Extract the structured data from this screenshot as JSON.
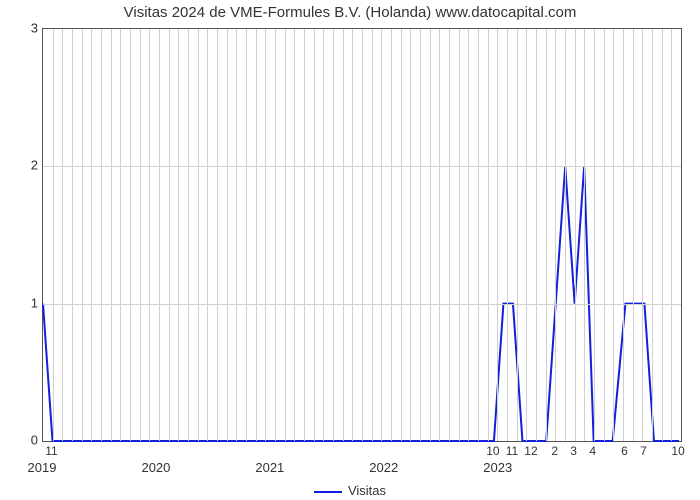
{
  "chart": {
    "type": "line",
    "title": "Visitas 2024 de VME-Formules B.V. (Holanda) www.datocapital.com",
    "title_fontsize": 15,
    "title_color": "#333333",
    "background_color": "#ffffff",
    "plot_border_color": "#555555",
    "grid_color": "#d0d0d0",
    "ylim": [
      0,
      3
    ],
    "ytick_step": 1,
    "yticks": [
      0,
      1,
      2,
      3
    ],
    "x_major_labels": [
      "2019",
      "2020",
      "2021",
      "2022",
      "2023"
    ],
    "x_major_positions": [
      0.0,
      0.1786,
      0.3571,
      0.5357,
      0.7143
    ],
    "x_minor_labels": [
      "11",
      "10",
      "11",
      "12",
      "2",
      "3",
      "4",
      "6",
      "7",
      "10"
    ],
    "x_minor_positions": [
      0.0149,
      0.7068,
      0.7366,
      0.7664,
      0.8036,
      0.8333,
      0.8631,
      0.9129,
      0.9427,
      0.997
    ],
    "x_n_minor_gridlines": 66,
    "series": {
      "label": "Visitas",
      "color": "#1220db",
      "line_width": 2,
      "points": [
        {
          "x": 0.0,
          "y": 1
        },
        {
          "x": 0.0149,
          "y": 0
        },
        {
          "x": 0.7068,
          "y": 0
        },
        {
          "x": 0.7217,
          "y": 1
        },
        {
          "x": 0.7366,
          "y": 1
        },
        {
          "x": 0.7515,
          "y": 0
        },
        {
          "x": 0.7664,
          "y": 0
        },
        {
          "x": 0.7887,
          "y": 0
        },
        {
          "x": 0.8036,
          "y": 1
        },
        {
          "x": 0.8185,
          "y": 2
        },
        {
          "x": 0.8333,
          "y": 1
        },
        {
          "x": 0.8482,
          "y": 2
        },
        {
          "x": 0.8631,
          "y": 0
        },
        {
          "x": 0.8929,
          "y": 0
        },
        {
          "x": 0.9129,
          "y": 1
        },
        {
          "x": 0.9427,
          "y": 1
        },
        {
          "x": 0.9576,
          "y": 0
        },
        {
          "x": 0.997,
          "y": 0
        }
      ]
    },
    "legend_position": "bottom-center"
  }
}
